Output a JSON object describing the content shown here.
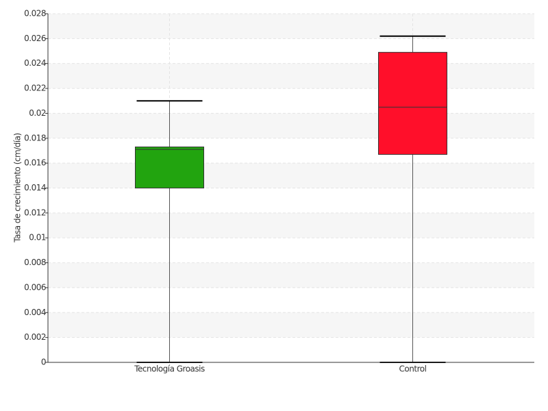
{
  "chart_data": {
    "type": "box",
    "y_label": "Tasa de crecimiento (cm/día)",
    "categories": [
      "Tecnología Groasis",
      "Control"
    ],
    "boxes": [
      {
        "min": 0,
        "q1": 0.014,
        "median": 0.0171,
        "q3": 0.0173,
        "max": 0.021,
        "color": "#22a40f"
      },
      {
        "min": 0,
        "q1": 0.0167,
        "median": 0.0205,
        "q3": 0.0249,
        "max": 0.0262,
        "color": "#ff0f2a"
      }
    ],
    "ylim": [
      0,
      0.028
    ],
    "yticks": [
      0,
      0.002,
      0.004,
      0.006,
      0.008,
      0.01,
      0.012,
      0.014,
      0.016,
      0.018,
      0.02,
      0.022,
      0.024,
      0.026,
      0.028
    ],
    "grid": true
  }
}
